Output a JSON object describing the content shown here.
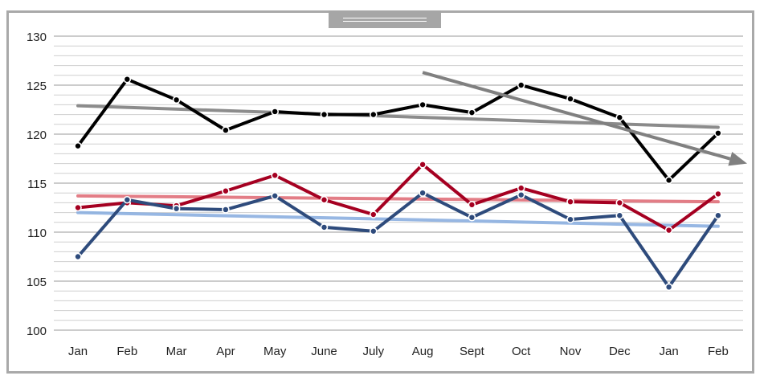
{
  "chart_data": {
    "type": "line",
    "title": "",
    "xlabel": "",
    "ylabel": "",
    "categories": [
      "Jan",
      "Feb",
      "Mar",
      "Apr",
      "May",
      "June",
      "July",
      "Aug",
      "Sept",
      "Oct",
      "Nov",
      "Dec",
      "Jan",
      "Feb"
    ],
    "ylim": [
      100,
      130
    ],
    "yticks": [
      100,
      105,
      110,
      115,
      120,
      125,
      130
    ],
    "grid": true,
    "legend": "none",
    "series": [
      {
        "color": "#000000",
        "values": [
          118.8,
          125.6,
          123.5,
          120.4,
          122.3,
          122.0,
          122.0,
          123.0,
          122.2,
          125.0,
          123.6,
          121.7,
          115.3,
          120.1
        ]
      },
      {
        "color": "#a50021",
        "values": [
          112.5,
          113.0,
          112.7,
          114.2,
          115.8,
          113.3,
          111.8,
          116.9,
          112.8,
          114.5,
          113.1,
          113.0,
          110.2,
          113.9
        ]
      },
      {
        "color": "#2e4b7c",
        "values": [
          107.5,
          113.3,
          112.4,
          112.3,
          113.7,
          110.5,
          110.1,
          114.0,
          111.5,
          113.8,
          111.3,
          111.7,
          104.4,
          111.7
        ]
      }
    ],
    "trendlines": [
      {
        "color": "#808080",
        "from": 122.9,
        "to": 120.7
      },
      {
        "color": "#e0707a",
        "from": 113.7,
        "to": 113.1
      },
      {
        "color": "#8cb0e0",
        "from": 112.0,
        "to": 110.6
      }
    ],
    "annotation_arrow": {
      "color": "#808080",
      "start": {
        "x": "Aug",
        "y": 126.3
      },
      "end_y": 117.0
    }
  }
}
